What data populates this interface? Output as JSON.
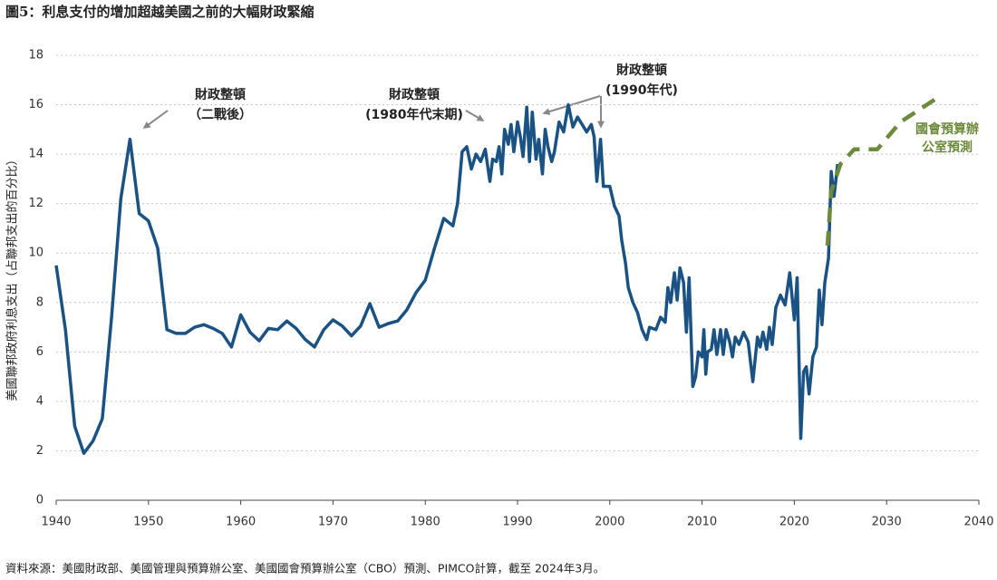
{
  "chart_data": {
    "type": "line",
    "title": "圖5：利息支付的增加超越美國之前的大幅財政緊縮",
    "y_label": "美國聯邦政府利息支出（占聯邦支出的百分比）",
    "source": "資料來源：美國財政部、美國管理與預算辦公室、美國國會預算辦公室（CBO）預測、PIMCO計算，截至 2024年3月。",
    "xlim": [
      1940,
      2040
    ],
    "xticks": [
      1940,
      1950,
      1960,
      1970,
      1980,
      1990,
      2000,
      2010,
      2020,
      2030,
      2040
    ],
    "ylim": [
      0,
      18
    ],
    "yticks": [
      0,
      2,
      4,
      6,
      8,
      10,
      12,
      14,
      16,
      18
    ],
    "grid": true,
    "annotations": [
      {
        "lines": [
          "財政整頓",
          "（二戰後）"
        ]
      },
      {
        "lines": [
          "財政整頓",
          "(1980年代末期)"
        ]
      },
      {
        "lines": [
          "財政整頓",
          "(1990年代)"
        ]
      }
    ],
    "series": [
      {
        "color": "#1a5283",
        "dashed": false,
        "x": [
          1940,
          1941,
          1942,
          1943,
          1944,
          1945,
          1946,
          1947,
          1948,
          1949,
          1950,
          1951,
          1952,
          1953,
          1954,
          1955,
          1956,
          1957,
          1958,
          1959,
          1960,
          1961,
          1962,
          1963,
          1964,
          1965,
          1966,
          1967,
          1968,
          1969,
          1970,
          1971,
          1972,
          1973,
          1974,
          1975,
          1976,
          1977,
          1978,
          1979,
          1980,
          1981,
          1982,
          1983,
          1983.5,
          1984,
          1984.5,
          1985,
          1985.5,
          1986,
          1986.5,
          1987,
          1987.3,
          1987.7,
          1988,
          1988.3,
          1988.6,
          1989,
          1989.3,
          1989.6,
          1990,
          1990.3,
          1990.6,
          1991,
          1991.3,
          1991.6,
          1992,
          1992.3,
          1992.7,
          1993,
          1993.3,
          1993.7,
          1994,
          1994.5,
          1995,
          1995.5,
          1996,
          1996.5,
          1997,
          1997.5,
          1998,
          1998.3,
          1998.6,
          1999,
          1999.3,
          2000,
          2000.5,
          2001,
          2001.3,
          2001.7,
          2002,
          2002.5,
          2003,
          2003.5,
          2004,
          2004.3,
          2005,
          2005.5,
          2006,
          2006.3,
          2006.6,
          2007,
          2007.3,
          2007.6,
          2008,
          2008.3,
          2008.6,
          2009,
          2009.3,
          2009.6,
          2010,
          2010.2,
          2010.4,
          2010.6,
          2011,
          2011.3,
          2011.6,
          2012,
          2012.3,
          2012.6,
          2013,
          2013.3,
          2013.6,
          2014,
          2014.5,
          2015,
          2015.5,
          2016,
          2016.3,
          2016.6,
          2017,
          2017.3,
          2017.6,
          2018,
          2018.5,
          2019,
          2019.5,
          2020,
          2020.3,
          2020.7,
          2021,
          2021.3,
          2021.6,
          2022,
          2022.4,
          2022.7,
          2023,
          2023.3,
          2023.7,
          2024,
          2024.3,
          2024.7
        ],
        "values": [
          9.5,
          6.9,
          3.0,
          1.9,
          2.4,
          3.3,
          7.4,
          12.2,
          14.6,
          11.6,
          11.3,
          10.2,
          6.9,
          6.75,
          6.75,
          7.0,
          7.1,
          6.95,
          6.75,
          6.2,
          7.5,
          6.8,
          6.45,
          6.95,
          6.9,
          7.25,
          6.95,
          6.5,
          6.2,
          6.9,
          7.3,
          7.05,
          6.65,
          7.05,
          7.95,
          7.0,
          7.15,
          7.25,
          7.7,
          8.4,
          8.9,
          10.2,
          11.4,
          11.1,
          12.0,
          14.1,
          14.3,
          13.4,
          14.0,
          13.7,
          14.2,
          12.9,
          13.8,
          13.7,
          14.3,
          13.2,
          15.0,
          14.4,
          15.2,
          14.1,
          15.3,
          14.7,
          13.9,
          15.9,
          13.7,
          15.7,
          13.8,
          14.6,
          13.2,
          15.0,
          14.3,
          13.7,
          14.1,
          15.3,
          14.9,
          16.0,
          15.1,
          15.5,
          15.2,
          14.9,
          15.2,
          14.7,
          12.9,
          14.6,
          12.7,
          12.7,
          11.9,
          11.5,
          10.5,
          9.6,
          8.6,
          8.0,
          7.6,
          6.9,
          6.5,
          7.0,
          6.9,
          7.4,
          7.2,
          8.6,
          8.0,
          9.2,
          8.1,
          9.4,
          8.8,
          6.8,
          9.0,
          4.6,
          5.0,
          6.0,
          5.8,
          6.9,
          5.1,
          6.0,
          6.1,
          6.9,
          5.9,
          6.9,
          5.9,
          6.9,
          6.4,
          5.8,
          6.6,
          6.3,
          6.8,
          6.4,
          4.8,
          6.6,
          6.2,
          6.8,
          6.1,
          7.0,
          6.3,
          7.8,
          8.3,
          7.9,
          9.2,
          7.3,
          9.0,
          2.5,
          5.2,
          5.4,
          4.3,
          5.8,
          6.2,
          8.5,
          7.1,
          8.8,
          9.8,
          13.3,
          12.3,
          13.6
        ]
      },
      {
        "name": [
          "國會預算辦",
          "公室預測"
        ],
        "color": "#6b8a3a",
        "dashed": true,
        "x": [
          2023.6,
          2024.0,
          2025.0,
          2026.5,
          2029,
          2031.5,
          2036
        ],
        "values": [
          10.3,
          12.5,
          13.6,
          14.2,
          14.2,
          15.3,
          16.4
        ]
      }
    ]
  }
}
